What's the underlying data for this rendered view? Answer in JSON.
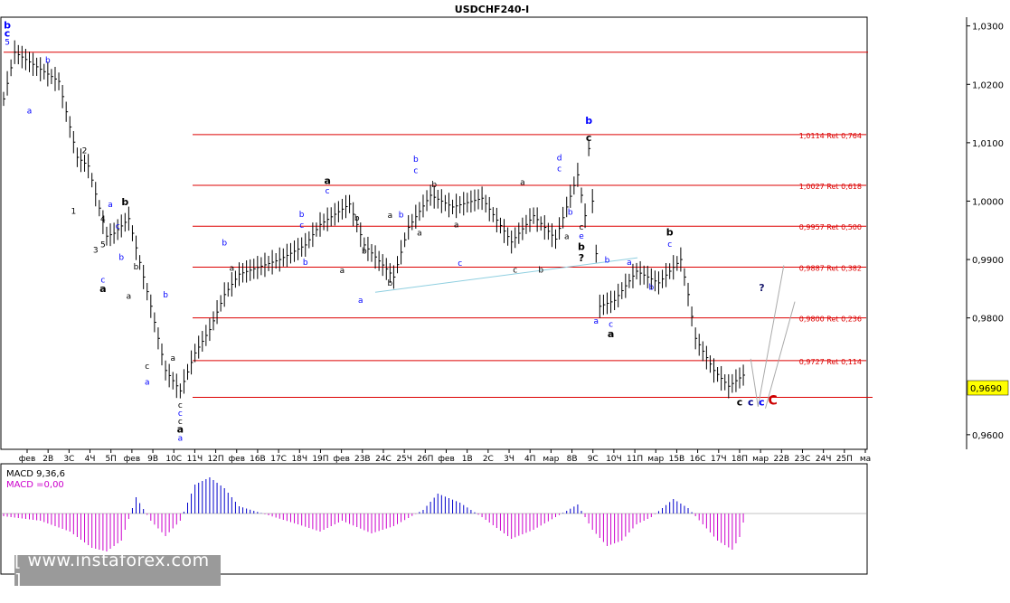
{
  "window": {
    "title": "USDCHF240-I"
  },
  "price": {
    "axis_ticks": [
      "1,0300",
      "1,0200",
      "1,0100",
      "1,0000",
      "0,9900",
      "0,9800",
      "0,9600"
    ],
    "current": "0,9690",
    "ymin": 0.9575,
    "ymax": 1.0315
  },
  "time_axis": [
    "фев",
    "2В",
    "3С",
    "4Ч",
    "5П",
    "фев",
    "9В",
    "10С",
    "11Ч",
    "12П",
    "фев",
    "16В",
    "17С",
    "18Ч",
    "19П",
    "фев",
    "23В",
    "24С",
    "25Ч",
    "26П",
    "фев",
    "1В",
    "2С",
    "3Ч",
    "4П",
    "мар",
    "8В",
    "9С",
    "10Ч",
    "11П",
    "мар",
    "15В",
    "16С",
    "17Ч",
    "18П",
    "мар",
    "22В",
    "23С",
    "24Ч",
    "25П",
    "ма"
  ],
  "fib_levels": [
    {
      "price": 1.0114,
      "label": "1,0114 Ret 0,764"
    },
    {
      "price": 1.0027,
      "label": "1,0027 Ret 0,618"
    },
    {
      "price": 0.9957,
      "label": "0,9957 Ret 0,500"
    },
    {
      "price": 0.9887,
      "label": "0,9887 Ret 0,382"
    },
    {
      "price": 0.98,
      "label": "0,9800 Ret 0,236"
    },
    {
      "price": 0.9727,
      "label": "0,9727 Ret 0,114"
    }
  ],
  "support_line": {
    "price": 0.9664
  },
  "top_line": {
    "price": 1.0255
  },
  "wave_labels": [
    {
      "t": "b",
      "c": "blue",
      "bold": true,
      "i": 1,
      "p": 1.0296
    },
    {
      "t": "c",
      "c": "blue",
      "bold": true,
      "i": 1,
      "p": 1.0282
    },
    {
      "t": "5",
      "c": "blue",
      "bold": false,
      "i": 1,
      "p": 1.0268
    },
    {
      "t": "a",
      "c": "blue",
      "bold": false,
      "i": 7,
      "p": 1.015
    },
    {
      "t": "b",
      "c": "blue",
      "bold": false,
      "i": 12,
      "p": 1.0237
    },
    {
      "t": "2",
      "c": "black",
      "bold": false,
      "i": 22,
      "p": 1.0082
    },
    {
      "t": "1",
      "c": "black",
      "bold": false,
      "i": 19,
      "p": 0.9978
    },
    {
      "t": "a",
      "c": "blue",
      "bold": false,
      "i": 29,
      "p": 0.999
    },
    {
      "t": "b",
      "c": "black",
      "bold": true,
      "i": 33,
      "p": 0.9993
    },
    {
      "t": "4",
      "c": "black",
      "bold": false,
      "i": 27,
      "p": 0.9965
    },
    {
      "t": "3",
      "c": "black",
      "bold": false,
      "i": 25,
      "p": 0.9912
    },
    {
      "t": "c",
      "c": "blue",
      "bold": false,
      "i": 31,
      "p": 0.9953
    },
    {
      "t": "5",
      "c": "black",
      "bold": false,
      "i": 27,
      "p": 0.9921
    },
    {
      "t": "b",
      "c": "blue",
      "bold": false,
      "i": 32,
      "p": 0.9899
    },
    {
      "t": "c",
      "c": "blue",
      "bold": false,
      "i": 27,
      "p": 0.9861
    },
    {
      "t": "a",
      "c": "black",
      "bold": true,
      "i": 27,
      "p": 0.9844
    },
    {
      "t": "b",
      "c": "black",
      "bold": false,
      "i": 36,
      "p": 0.9883
    },
    {
      "t": "a",
      "c": "black",
      "bold": false,
      "i": 34,
      "p": 0.9833
    },
    {
      "t": "b",
      "c": "blue",
      "bold": false,
      "i": 44,
      "p": 0.9835
    },
    {
      "t": "c",
      "c": "black",
      "bold": false,
      "i": 39,
      "p": 0.9713
    },
    {
      "t": "a",
      "c": "blue",
      "bold": false,
      "i": 39,
      "p": 0.9686
    },
    {
      "t": "a",
      "c": "black",
      "bold": false,
      "i": 46,
      "p": 0.9727
    },
    {
      "t": "c",
      "c": "black",
      "bold": false,
      "i": 48,
      "p": 0.9646
    },
    {
      "t": "c",
      "c": "blue",
      "bold": false,
      "i": 48,
      "p": 0.9632
    },
    {
      "t": "c",
      "c": "black",
      "bold": false,
      "i": 48,
      "p": 0.9618
    },
    {
      "t": "a",
      "c": "black",
      "bold": true,
      "i": 48,
      "p": 0.9604
    },
    {
      "t": "a",
      "c": "blue",
      "bold": false,
      "i": 48,
      "p": 0.959
    },
    {
      "t": "b",
      "c": "blue",
      "bold": false,
      "i": 60,
      "p": 0.9924
    },
    {
      "t": "a",
      "c": "black",
      "bold": false,
      "i": 62,
      "p": 0.9881
    },
    {
      "t": "b",
      "c": "blue",
      "bold": false,
      "i": 81,
      "p": 0.9973
    },
    {
      "t": "c",
      "c": "blue",
      "bold": false,
      "i": 81,
      "p": 0.9954
    },
    {
      "t": "b",
      "c": "blue",
      "bold": false,
      "i": 82,
      "p": 0.9891
    },
    {
      "t": "a",
      "c": "black",
      "bold": true,
      "i": 88,
      "p": 1.0029
    },
    {
      "t": "c",
      "c": "blue",
      "bold": false,
      "i": 88,
      "p": 1.0013
    },
    {
      "t": "b",
      "c": "black",
      "bold": false,
      "i": 96,
      "p": 0.9967
    },
    {
      "t": "a",
      "c": "black",
      "bold": false,
      "i": 92,
      "p": 0.9877
    },
    {
      "t": "b",
      "c": "blue",
      "bold": false,
      "i": 108,
      "p": 0.9972
    },
    {
      "t": "b",
      "c": "black",
      "bold": false,
      "i": 98,
      "p": 0.991
    },
    {
      "t": "a",
      "c": "blue",
      "bold": false,
      "i": 97,
      "p": 0.9826
    },
    {
      "t": "a",
      "c": "black",
      "bold": false,
      "i": 105,
      "p": 0.9971
    },
    {
      "t": "b",
      "c": "black",
      "bold": false,
      "i": 105,
      "p": 0.9855
    },
    {
      "t": "b",
      "c": "blue",
      "bold": false,
      "i": 112,
      "p": 1.0067
    },
    {
      "t": "c",
      "c": "blue",
      "bold": false,
      "i": 112,
      "p": 1.0048
    },
    {
      "t": "a",
      "c": "black",
      "bold": false,
      "i": 113,
      "p": 0.9941
    },
    {
      "t": "b",
      "c": "black",
      "bold": false,
      "i": 117,
      "p": 1.0024
    },
    {
      "t": "a",
      "c": "black",
      "bold": false,
      "i": 123,
      "p": 0.9955
    },
    {
      "t": "c",
      "c": "blue",
      "bold": false,
      "i": 124,
      "p": 0.9889
    },
    {
      "t": "c",
      "c": "black",
      "bold": false,
      "i": 139,
      "p": 0.9878
    },
    {
      "t": "a",
      "c": "black",
      "bold": false,
      "i": 141,
      "p": 1.0028
    },
    {
      "t": "b",
      "c": "black",
      "bold": false,
      "i": 146,
      "p": 0.9878
    },
    {
      "t": "d",
      "c": "blue",
      "bold": false,
      "i": 151,
      "p": 1.007
    },
    {
      "t": "c",
      "c": "blue",
      "bold": false,
      "i": 151,
      "p": 1.0051
    },
    {
      "t": "b",
      "c": "blue",
      "bold": false,
      "i": 154,
      "p": 0.9977
    },
    {
      "t": "a",
      "c": "black",
      "bold": false,
      "i": 153,
      "p": 0.9935
    },
    {
      "t": "b",
      "c": "blue",
      "bold": true,
      "i": 159,
      "p": 1.0132
    },
    {
      "t": "c",
      "c": "black",
      "bold": true,
      "i": 159,
      "p": 1.0103
    },
    {
      "t": "c",
      "c": "black",
      "bold": false,
      "i": 157,
      "p": 0.9951
    },
    {
      "t": "e",
      "c": "blue",
      "bold": false,
      "i": 157,
      "p": 0.9936
    },
    {
      "t": "b",
      "c": "black",
      "bold": true,
      "i": 157,
      "p": 0.9916
    },
    {
      "t": "?",
      "c": "black",
      "bold": true,
      "i": 157,
      "p": 0.9897
    },
    {
      "t": "b",
      "c": "blue",
      "bold": false,
      "i": 164,
      "p": 0.9895
    },
    {
      "t": "a",
      "c": "blue",
      "bold": false,
      "i": 170,
      "p": 0.9891
    },
    {
      "t": "b",
      "c": "blue",
      "bold": false,
      "i": 176,
      "p": 0.9848
    },
    {
      "t": "a",
      "c": "blue",
      "bold": false,
      "i": 161,
      "p": 0.979
    },
    {
      "t": "c",
      "c": "blue",
      "bold": false,
      "i": 165,
      "p": 0.9785
    },
    {
      "t": "a",
      "c": "black",
      "bold": true,
      "i": 165,
      "p": 0.9767
    },
    {
      "t": "b",
      "c": "black",
      "bold": true,
      "i": 181,
      "p": 0.9941
    },
    {
      "t": "c",
      "c": "blue",
      "bold": false,
      "i": 181,
      "p": 0.9922
    },
    {
      "t": "?",
      "c": "#1a1a6e",
      "bold": true,
      "i": 206,
      "p": 0.9846
    },
    {
      "t": "c",
      "c": "black",
      "bold": true,
      "i": 200,
      "p": 0.965
    },
    {
      "t": "c",
      "c": "#00008b",
      "bold": true,
      "i": 203,
      "p": 0.965
    },
    {
      "t": "c",
      "c": "blue",
      "bold": true,
      "i": 206,
      "p": 0.965
    },
    {
      "t": "C",
      "c": "#cc0000",
      "bold": true,
      "i": 209,
      "p": 0.9652
    }
  ],
  "macd": {
    "title": "MACD 9,36,6",
    "value_line": "MACD =0,00"
  },
  "watermark": {
    "text": "[ www.instaforex.com ]"
  },
  "colors": {
    "fib": "#dd0000",
    "up_label": "#0000cc",
    "macd_pos": "#0000cc",
    "macd_neg": "#cc00cc",
    "trend": "#8fcfe0"
  }
}
